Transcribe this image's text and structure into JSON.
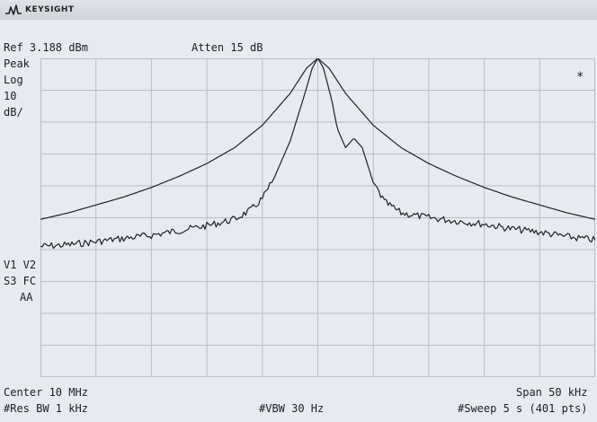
{
  "brand": {
    "name": "KEYSIGHT",
    "icon": "keysight-wave-logo-icon"
  },
  "header": {
    "ref_level": "Ref 3.188 dBm",
    "attenuation": "Atten 15 dB"
  },
  "left_annotations": {
    "detector": "Peak",
    "scale_type": "Log",
    "scale_value": "10",
    "scale_unit": "dB/",
    "trace_flags_1": "V1 V2",
    "trace_flags_2": "S3 FC",
    "trace_flags_3": "AA"
  },
  "marker_flag": "*",
  "footer": {
    "center": "Center 10 MHz",
    "span": "Span 50 kHz",
    "res_bw": "#Res BW 1 kHz",
    "vbw": "#VBW 30 Hz",
    "sweep": "#Sweep 5 s (401 pts)"
  },
  "colors": {
    "background": "#e7eaee",
    "grid": "#b9bfc7",
    "trace": "#1f2328"
  },
  "grid": {
    "divisions_x": 10,
    "divisions_y": 10
  },
  "traces": [
    {
      "name": "trace-broad",
      "note": "wide Lorentzian-like response",
      "points": [
        [
          0,
          5.05
        ],
        [
          0.5,
          4.85
        ],
        [
          1,
          4.6
        ],
        [
          1.5,
          4.35
        ],
        [
          2,
          4.05
        ],
        [
          2.5,
          3.7
        ],
        [
          3,
          3.3
        ],
        [
          3.5,
          2.8
        ],
        [
          4,
          2.1
        ],
        [
          4.5,
          1.1
        ],
        [
          4.8,
          0.3
        ],
        [
          5,
          0.0
        ],
        [
          5.2,
          0.3
        ],
        [
          5.5,
          1.1
        ],
        [
          6,
          2.1
        ],
        [
          6.5,
          2.8
        ],
        [
          7,
          3.3
        ],
        [
          7.5,
          3.7
        ],
        [
          8,
          4.05
        ],
        [
          8.5,
          4.35
        ],
        [
          9,
          4.6
        ],
        [
          9.5,
          4.85
        ],
        [
          10,
          5.05
        ]
      ]
    },
    {
      "name": "trace-narrow",
      "note": "narrow peak with noisy skirts and shoulder",
      "points": [
        [
          0,
          5.9
        ],
        [
          0.5,
          5.85
        ],
        [
          1,
          5.75
        ],
        [
          1.5,
          5.65
        ],
        [
          2,
          5.55
        ],
        [
          2.5,
          5.4
        ],
        [
          3,
          5.25
        ],
        [
          3.5,
          5.05
        ],
        [
          3.8,
          4.75
        ],
        [
          4.0,
          4.4
        ],
        [
          4.2,
          3.8
        ],
        [
          4.5,
          2.6
        ],
        [
          4.75,
          1.2
        ],
        [
          4.9,
          0.3
        ],
        [
          5.0,
          0.0
        ],
        [
          5.1,
          0.3
        ],
        [
          5.25,
          1.3
        ],
        [
          5.35,
          2.2
        ],
        [
          5.5,
          2.8
        ],
        [
          5.65,
          2.5
        ],
        [
          5.8,
          2.8
        ],
        [
          6.0,
          3.9
        ],
        [
          6.2,
          4.5
        ],
        [
          6.5,
          4.85
        ],
        [
          7,
          5.0
        ],
        [
          7.5,
          5.1
        ],
        [
          8,
          5.2
        ],
        [
          8.5,
          5.35
        ],
        [
          9,
          5.45
        ],
        [
          9.5,
          5.6
        ],
        [
          10,
          5.7
        ]
      ]
    }
  ]
}
